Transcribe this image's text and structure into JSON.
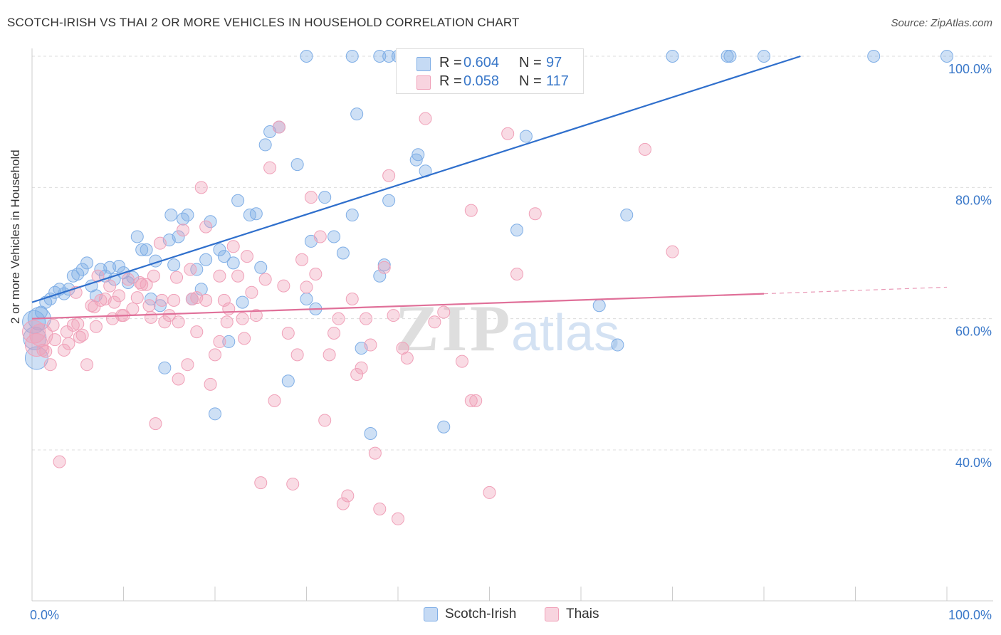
{
  "title": "SCOTCH-IRISH VS THAI 2 OR MORE VEHICLES IN HOUSEHOLD CORRELATION CHART",
  "source": "Source: ZipAtlas.com",
  "watermark": {
    "zip": "ZIP",
    "atlas": "atlas"
  },
  "legend_top": [
    {
      "r_label": "R =",
      "r_value": "0.604",
      "n_label": "N =",
      "n_value": "97",
      "color": "#7faee6"
    },
    {
      "r_label": "R =",
      "r_value": "0.058",
      "n_label": "N =",
      "n_value": "117",
      "color": "#f0a0b8"
    }
  ],
  "legend_bottom": [
    {
      "label": "Scotch-Irish",
      "color": "#7faee6"
    },
    {
      "label": "Thais",
      "color": "#f0a0b8"
    }
  ],
  "chart_data": {
    "type": "scatter",
    "ylabel": "2 or more Vehicles in Household",
    "xlabel": "",
    "xlim": [
      0,
      100
    ],
    "ylim": [
      17,
      100
    ],
    "x_tick_labels": [
      "0.0%",
      "100.0%"
    ],
    "y_ticks": [
      40,
      60,
      80,
      100
    ],
    "y_tick_labels": [
      "40.0%",
      "60.0%",
      "80.0%",
      "100.0%"
    ],
    "grid": true,
    "series": [
      {
        "name": "Scotch-Irish",
        "color": "#7faee6",
        "line_color": "#2f6fcc",
        "trend": {
          "x0": 0,
          "y0": 62.5,
          "x1": 84,
          "y1": 100
        },
        "points": [
          [
            0.2,
            59.5
          ],
          [
            0.3,
            57
          ],
          [
            0.5,
            54
          ],
          [
            0.8,
            60
          ],
          [
            1,
            61
          ],
          [
            1.5,
            62.5
          ],
          [
            2,
            63
          ],
          [
            2.5,
            64
          ],
          [
            3,
            64.5
          ],
          [
            3.5,
            63.8
          ],
          [
            4,
            64.5
          ],
          [
            4.5,
            66.5
          ],
          [
            5,
            66.8
          ],
          [
            5.5,
            67.5
          ],
          [
            6,
            68.5
          ],
          [
            6.5,
            65
          ],
          [
            7,
            63.5
          ],
          [
            7.5,
            67.5
          ],
          [
            8,
            66.5
          ],
          [
            8.5,
            67.8
          ],
          [
            9,
            66
          ],
          [
            9.5,
            68
          ],
          [
            10,
            67
          ],
          [
            10.5,
            65.5
          ],
          [
            11,
            66.3
          ],
          [
            11.5,
            72.5
          ],
          [
            12,
            70.5
          ],
          [
            12.5,
            70.5
          ],
          [
            13,
            63
          ],
          [
            13.5,
            68.8
          ],
          [
            14,
            62
          ],
          [
            14.5,
            52.5
          ],
          [
            15,
            72
          ],
          [
            15.5,
            68.2
          ],
          [
            15.2,
            75.8
          ],
          [
            16,
            72.5
          ],
          [
            16.5,
            75.2
          ],
          [
            17,
            75.8
          ],
          [
            17.5,
            63
          ],
          [
            18,
            67.5
          ],
          [
            18.5,
            64.5
          ],
          [
            19,
            69
          ],
          [
            19.5,
            74.8
          ],
          [
            20,
            45.5
          ],
          [
            20.5,
            70.5
          ],
          [
            21,
            69.5
          ],
          [
            21.5,
            56.5
          ],
          [
            22,
            68.5
          ],
          [
            22.5,
            78
          ],
          [
            23,
            62.5
          ],
          [
            23.8,
            75.8
          ],
          [
            24.5,
            76
          ],
          [
            25,
            67.8
          ],
          [
            25.5,
            86.5
          ],
          [
            26,
            88.5
          ],
          [
            27,
            89.2
          ],
          [
            28,
            50.5
          ],
          [
            29,
            83.5
          ],
          [
            30,
            63
          ],
          [
            30.5,
            71.8
          ],
          [
            31,
            61.5
          ],
          [
            32,
            78.5
          ],
          [
            33,
            72.5
          ],
          [
            34,
            70
          ],
          [
            35,
            75.8
          ],
          [
            35.5,
            91.2
          ],
          [
            36,
            55.5
          ],
          [
            37,
            42.5
          ],
          [
            38,
            66.5
          ],
          [
            38.5,
            68.2
          ],
          [
            39,
            78
          ],
          [
            42,
            84.2
          ],
          [
            42.2,
            85
          ],
          [
            43,
            82.5
          ],
          [
            45,
            43.5
          ],
          [
            53,
            73.5
          ],
          [
            54,
            87.8
          ],
          [
            62,
            62
          ],
          [
            64,
            56
          ],
          [
            65,
            75.8
          ],
          [
            30,
            100
          ],
          [
            35,
            100
          ],
          [
            38,
            100
          ],
          [
            45,
            100
          ],
          [
            51,
            100
          ],
          [
            59,
            100
          ],
          [
            70,
            100
          ],
          [
            76,
            100
          ],
          [
            80,
            100
          ],
          [
            92,
            100
          ],
          [
            100,
            100
          ],
          [
            40,
            100
          ],
          [
            42,
            100
          ],
          [
            43,
            100
          ],
          [
            76.3,
            100
          ],
          [
            39,
            100
          ],
          [
            45.5,
            100
          ]
        ]
      },
      {
        "name": "Thais",
        "color": "#f0a0b8",
        "line_color": "#e07099",
        "trend": {
          "x0": 0,
          "y0": 60,
          "x1": 80,
          "y1": 63.8,
          "dash_to": {
            "x": 100,
            "y": 64.8
          }
        },
        "points": [
          [
            0.2,
            58
          ],
          [
            0.5,
            56
          ],
          [
            1,
            57.5
          ],
          [
            1.5,
            55
          ],
          [
            2,
            53
          ],
          [
            2.5,
            56.8
          ],
          [
            3,
            38.2
          ],
          [
            3.5,
            55.2
          ],
          [
            4,
            56.2
          ],
          [
            4.5,
            59
          ],
          [
            5,
            59.2
          ],
          [
            5.5,
            57.5
          ],
          [
            6,
            53
          ],
          [
            6.5,
            62
          ],
          [
            7,
            58.8
          ],
          [
            7.5,
            62.8
          ],
          [
            8,
            63
          ],
          [
            8.5,
            65
          ],
          [
            9,
            62.5
          ],
          [
            9.5,
            63.5
          ],
          [
            10,
            60.5
          ],
          [
            10.5,
            66
          ],
          [
            11,
            61.5
          ],
          [
            11.5,
            63.2
          ],
          [
            12,
            65.2
          ],
          [
            12.5,
            65.2
          ],
          [
            13,
            60.2
          ],
          [
            13.5,
            44
          ],
          [
            14,
            71.5
          ],
          [
            14.5,
            59.5
          ],
          [
            15,
            60.5
          ],
          [
            15.5,
            62.8
          ],
          [
            16,
            50.8
          ],
          [
            16.5,
            73.5
          ],
          [
            17,
            53
          ],
          [
            17.5,
            63
          ],
          [
            18,
            58
          ],
          [
            18.5,
            80
          ],
          [
            19,
            74
          ],
          [
            19.5,
            50
          ],
          [
            20,
            54.5
          ],
          [
            20.5,
            66.5
          ],
          [
            21,
            62.8
          ],
          [
            21.5,
            61.5
          ],
          [
            22,
            71
          ],
          [
            22.5,
            66.5
          ],
          [
            23,
            60
          ],
          [
            23.5,
            69.5
          ],
          [
            24,
            64
          ],
          [
            24.5,
            60.5
          ],
          [
            25,
            35
          ],
          [
            25.5,
            66
          ],
          [
            26,
            83
          ],
          [
            26.5,
            47.5
          ],
          [
            27,
            89.2
          ],
          [
            27.5,
            65
          ],
          [
            28,
            57.8
          ],
          [
            28.5,
            34.8
          ],
          [
            29,
            54.5
          ],
          [
            29.5,
            69
          ],
          [
            30,
            64.8
          ],
          [
            30.5,
            78.5
          ],
          [
            31,
            66.8
          ],
          [
            31.5,
            72.5
          ],
          [
            32,
            44.5
          ],
          [
            32.5,
            54.5
          ],
          [
            33,
            57.8
          ],
          [
            33.5,
            60
          ],
          [
            34,
            31.8
          ],
          [
            34.5,
            33
          ],
          [
            35,
            63
          ],
          [
            35.5,
            51.5
          ],
          [
            36,
            52.5
          ],
          [
            36.5,
            60
          ],
          [
            37,
            56
          ],
          [
            37.5,
            39.5
          ],
          [
            38,
            31
          ],
          [
            38.5,
            67.8
          ],
          [
            39,
            81.8
          ],
          [
            39.5,
            60.5
          ],
          [
            40,
            29.5
          ],
          [
            40.5,
            55.5
          ],
          [
            41,
            54
          ],
          [
            43,
            90.5
          ],
          [
            44,
            59.5
          ],
          [
            45,
            61
          ],
          [
            47,
            53.5
          ],
          [
            48,
            47.5
          ],
          [
            48.5,
            47.5
          ],
          [
            48,
            76.5
          ],
          [
            50,
            33.5
          ],
          [
            52,
            88.2
          ],
          [
            53,
            66.8
          ],
          [
            55,
            76
          ],
          [
            67,
            85.8
          ],
          [
            70,
            70.2
          ],
          [
            16,
            59.5
          ],
          [
            13.3,
            66.5
          ],
          [
            18,
            63.2
          ],
          [
            17.3,
            67.5
          ],
          [
            19,
            62.8
          ],
          [
            21.3,
            59.5
          ],
          [
            14.2,
            62.8
          ],
          [
            9.8,
            60.5
          ],
          [
            11.8,
            65.5
          ],
          [
            7.2,
            66.5
          ],
          [
            6.8,
            61.8
          ],
          [
            20.5,
            56.5
          ],
          [
            23.2,
            57
          ],
          [
            2.3,
            59
          ],
          [
            3.8,
            58
          ],
          [
            1.2,
            55.2
          ],
          [
            5.2,
            57.2
          ],
          [
            8.8,
            60
          ],
          [
            12.8,
            62
          ],
          [
            15.8,
            66.3
          ],
          [
            4.8,
            64
          ]
        ]
      }
    ]
  }
}
